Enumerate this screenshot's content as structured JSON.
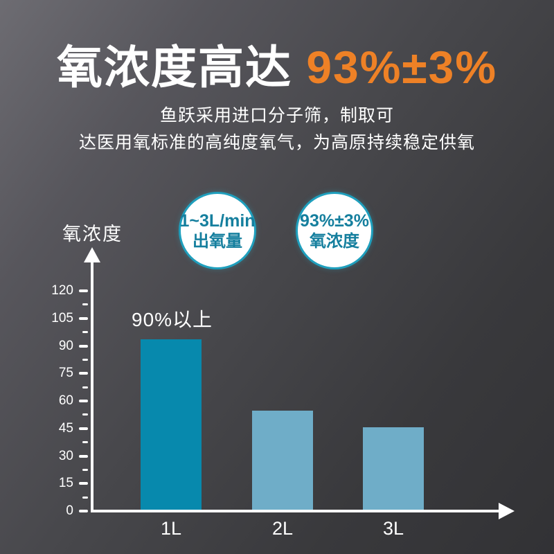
{
  "title": {
    "prefix": "氧浓度高达 ",
    "highlight": "93%±3%"
  },
  "subtitle": {
    "line1": "鱼跃采用进口分子筛，制取可",
    "line2": "达医用氧标准的高纯度氧气，为高原持续稳定供氧"
  },
  "badges": [
    {
      "line1": "1~3L/min",
      "line2": "出氧量"
    },
    {
      "line1": "93%±3%",
      "line2": "氧浓度"
    }
  ],
  "chart_data": {
    "type": "bar",
    "title": "",
    "ylabel": "氧浓度",
    "xlabel": "",
    "categories": [
      "1L",
      "2L",
      "3L"
    ],
    "values": [
      93,
      54,
      45
    ],
    "annotation": "90%以上",
    "ylim": [
      0,
      120
    ],
    "yticks": [
      0,
      15,
      30,
      45,
      60,
      75,
      90,
      105,
      120
    ],
    "minor_ticks_between_majors": true,
    "grid": false,
    "legend": null,
    "bar_colors": [
      "#0789ad",
      "#6fadc8",
      "#6fadc8"
    ]
  },
  "colors": {
    "highlight_orange": "#ee8126",
    "badge_border": "#1f9fbd",
    "badge_text": "#157f9e",
    "axis_white": "#ffffff",
    "bar_primary": "#0789ad",
    "bar_secondary": "#6fadc8",
    "background_top_left": "#6d6c72",
    "background_bottom_right": "#323235"
  }
}
